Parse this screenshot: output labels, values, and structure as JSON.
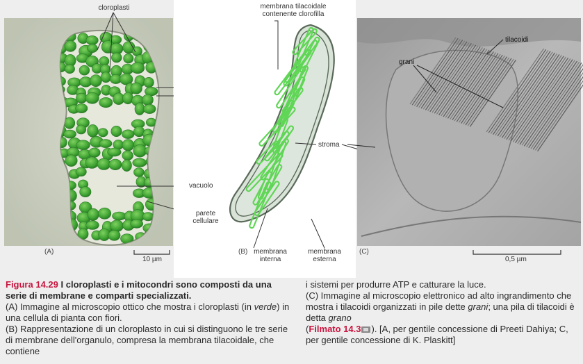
{
  "labels": {
    "cloroplasti": "cloroplasti",
    "membrana_tilacoidale_1": "membrana tilacoidale",
    "membrana_tilacoidale_2": "contenente clorofilla",
    "stroma": "stroma",
    "vacuolo": "vacuolo",
    "parete_1": "parete",
    "parete_2": "cellulare",
    "membrana_interna_1": "membrana",
    "membrana_interna_2": "interna",
    "membrana_esterna_1": "membrana",
    "membrana_esterna_2": "esterna",
    "tilacoidi": "tilacoidi",
    "grani": "grani"
  },
  "panels": {
    "a": "(A)",
    "b": "(B)",
    "c": "(C)"
  },
  "scale": {
    "a": "10 µm",
    "c": "0,5 µm"
  },
  "caption": {
    "fig_title": "Figura 14.29",
    "fig_head": "I cloroplasti e i mitocondri sono composti da una serie di membrane e comparti specializzati.",
    "a_pre": "(A) Immagine al microscopio ottico che mostra i cloroplasti (in ",
    "a_em": "verde",
    "a_post": ") in una cellula di pianta con fiori.",
    "b_text": "(B) Rappresentazione di un cloroplasto in cui si distinguono le tre serie di membrane dell'organulo, compresa la membrana tilacoidale, che contiene",
    "right_1": "i sistemi per produrre ATP e catturare la luce.",
    "c_pre": "(C) Immagine al microscopio elettronico ad alto ingrandimento che mostra i tilacoidi organizzati in pile dette ",
    "c_em1": "grani",
    "c_mid": "; una pila di tilacoidi è detta ",
    "c_em2": "grano",
    "paren_open": "(",
    "film_label": "Filmato 14.3",
    "c_tail": "). [A, per gentile concessione di Preeti Dahiya; C, per gentile concessione di K. Plaskitt]"
  },
  "colors": {
    "caption_accent": "#c8153f",
    "chloroplast": "#4caf3a",
    "thylakoid": "#5fd655",
    "stroma_fill": "#d9e3d8"
  }
}
